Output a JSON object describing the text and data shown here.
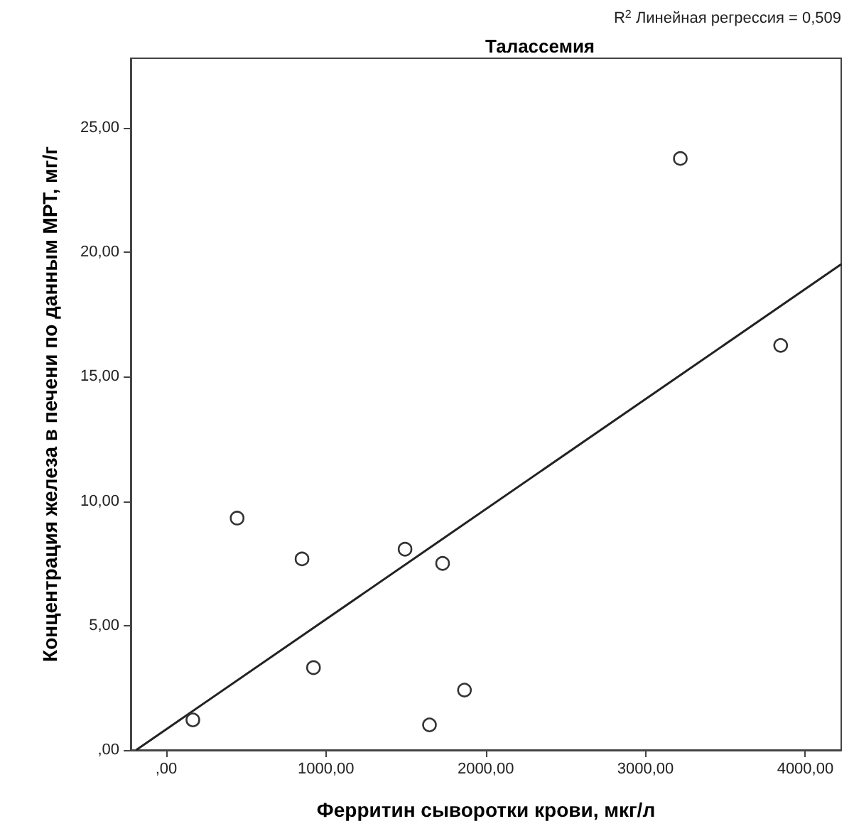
{
  "chart_data": {
    "type": "scatter",
    "title": "Талассемия",
    "xlabel": "Ферритин сыворотки крови, мкг/л",
    "ylabel": "Концентрация железа в печени по данным МРТ, мг/г",
    "annotations": [
      "R$^{2}$ Линейная регрессия = 0,509"
    ],
    "series": [
      {
        "color": "#333333",
        "marker": "circle",
        "x": [
          167,
          444,
          850,
          922,
          1495,
          1730,
          1648,
          1867,
          3218,
          3846
        ],
        "values": [
          1.21,
          9.32,
          7.68,
          3.31,
          8.07,
          7.5,
          1.01,
          2.41,
          23.77,
          16.26
        ]
      },
      {
        "type": "line",
        "color": "#222222",
        "marker": "none",
        "line_style": "solid",
        "x": [
          -188,
          4225
        ],
        "values": [
          0,
          19.52
        ]
      }
    ],
    "xlim": [
      -222,
      4225
    ],
    "ylim": [
      0,
      27.8
    ],
    "xticks": [
      {
        "value": 0,
        "label": ",00"
      },
      {
        "value": 1000,
        "label": "1000,00"
      },
      {
        "value": 2000,
        "label": "2000,00"
      },
      {
        "value": 3000,
        "label": "3000,00"
      },
      {
        "value": 4000,
        "label": "4000,00"
      }
    ],
    "yticks": [
      {
        "value": 0,
        "label": ",00"
      },
      {
        "value": 5,
        "label": "5,00"
      },
      {
        "value": 10,
        "label": "10,00"
      },
      {
        "value": 15,
        "label": "15,00"
      },
      {
        "value": 20,
        "label": "20,00"
      },
      {
        "value": 25,
        "label": "25,00"
      }
    ],
    "grid": false
  }
}
